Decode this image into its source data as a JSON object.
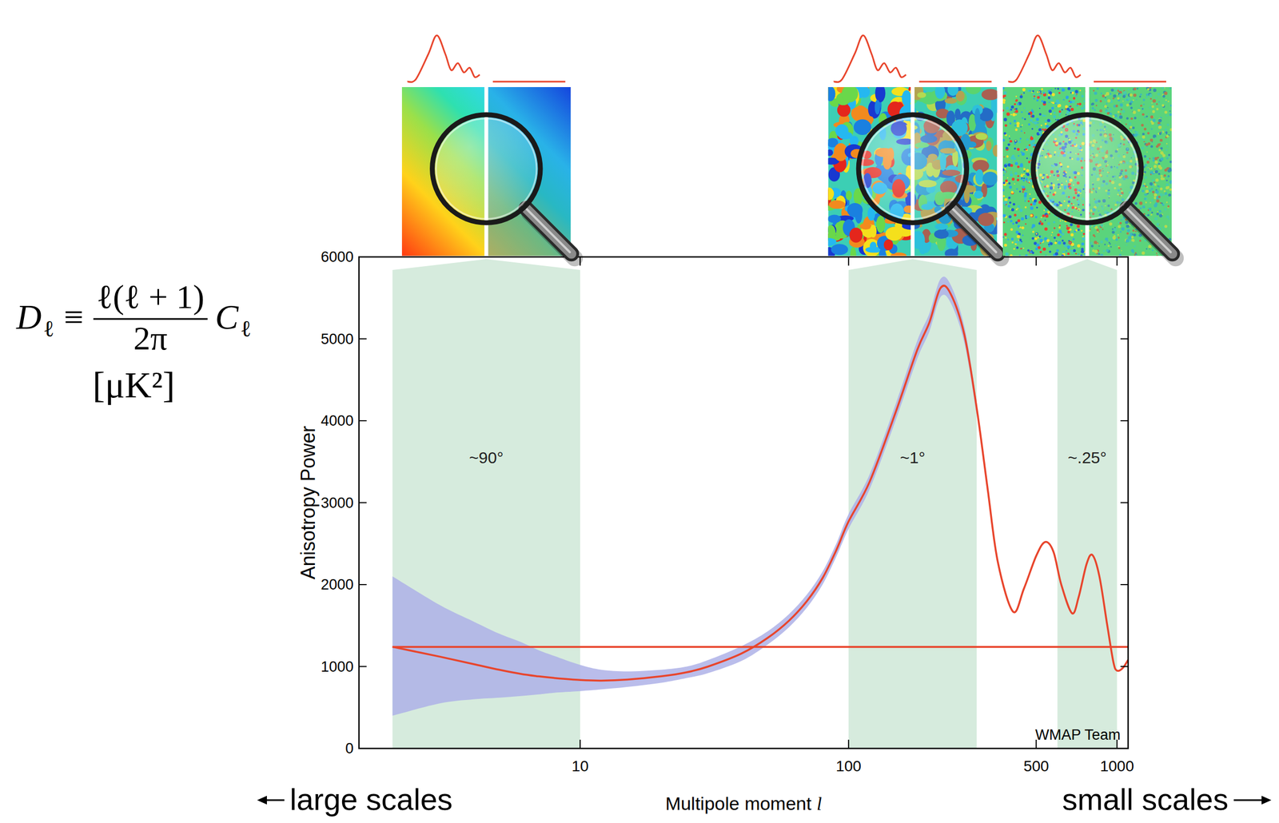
{
  "chart_data": {
    "type": "line",
    "xlabel": "Multipole moment l",
    "ylabel": "Anisotropy Power",
    "log": "x",
    "grid": false,
    "xlim": [
      1.5,
      1100
    ],
    "ylim": [
      0,
      6000
    ],
    "xticks": [
      10,
      100,
      500,
      1000
    ],
    "yticks": [
      0,
      1000,
      2000,
      3000,
      4000,
      5000,
      6000
    ],
    "x": [
      2,
      3,
      4,
      5,
      6,
      7,
      8,
      10,
      12,
      15,
      20,
      25,
      30,
      40,
      50,
      60,
      70,
      80,
      90,
      100,
      120,
      150,
      180,
      200,
      220,
      240,
      270,
      300,
      330,
      360,
      410,
      450,
      500,
      540,
      580,
      620,
      680,
      720,
      770,
      810,
      860,
      920,
      970,
      1000,
      1050,
      1100
    ],
    "series": [
      {
        "color": "#e8452c",
        "values": [
          1240,
          1120,
          1030,
          960,
          910,
          880,
          860,
          835,
          828,
          840,
          880,
          930,
          1000,
          1160,
          1350,
          1560,
          1800,
          2080,
          2420,
          2770,
          3260,
          4110,
          4860,
          5200,
          5620,
          5550,
          5050,
          4160,
          3160,
          2270,
          1670,
          1950,
          2350,
          2520,
          2400,
          2000,
          1650,
          1850,
          2250,
          2360,
          2100,
          1500,
          1050,
          950,
          980,
          1080
        ],
        "lower": [
          400,
          550,
          600,
          620,
          640,
          660,
          680,
          700,
          720,
          750,
          800,
          860,
          920,
          1070,
          1270,
          1480,
          1720,
          2000,
          2340,
          2680,
          3170,
          4010,
          4750,
          5090,
          5510,
          5440,
          4950,
          4080,
          null,
          null,
          null,
          null,
          null,
          null,
          null,
          null,
          null,
          null,
          null,
          null,
          null,
          null,
          null,
          null,
          null,
          null
        ],
        "upper": [
          2100,
          1750,
          1550,
          1400,
          1300,
          1200,
          1130,
          1020,
          960,
          940,
          960,
          1000,
          1080,
          1250,
          1430,
          1640,
          1880,
          2160,
          2500,
          2860,
          3350,
          4210,
          4970,
          5310,
          5730,
          5660,
          5150,
          4240,
          null,
          null,
          null,
          null,
          null,
          null,
          null,
          null,
          null,
          null,
          null,
          null,
          null,
          null,
          null,
          null,
          null,
          null
        ]
      },
      {
        "color": "#e8452c",
        "values": [
          1240,
          1240,
          1240,
          1240,
          1240,
          1240,
          1240,
          1240,
          1240,
          1240,
          1240,
          1240,
          1240,
          1240,
          1240,
          1240,
          1240,
          1240,
          1240,
          1240,
          1240,
          1240,
          1240,
          1240,
          1240,
          1240,
          1240,
          1240,
          1240,
          1240,
          1240,
          1240,
          1240,
          1240,
          1240,
          1240,
          1240,
          1240,
          1240,
          1240,
          1240,
          1240,
          1240,
          1240,
          1240,
          1240
        ]
      }
    ],
    "annotations": {
      "formula": {
        "symbol": "D",
        "subscript": "ℓ",
        "equiv": "≡",
        "numerator": "ℓ(ℓ + 1)",
        "denominator": "2π",
        "factor": "C",
        "factor_subscript": "ℓ"
      },
      "units": "[μK²]",
      "scale_left": "large scales",
      "scale_right": "small scales",
      "credit": "WMAP Team",
      "bands": [
        {
          "from": 2,
          "to": 10,
          "label": "~90°"
        },
        {
          "from": 100,
          "to": 300,
          "label": "~1°"
        },
        {
          "from": 600,
          "to": 1000,
          "label": "~.25°"
        }
      ]
    }
  }
}
